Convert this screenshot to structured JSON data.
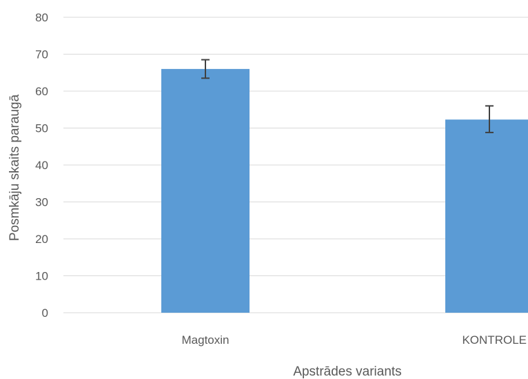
{
  "chart_data": {
    "type": "bar",
    "categories": [
      "Magtoxin",
      "KONTROLE"
    ],
    "values": [
      66,
      52.3
    ],
    "error_low": [
      63.5,
      48.8
    ],
    "error_high": [
      68.5,
      56
    ],
    "title": "",
    "xlabel": "Apstrādes variants",
    "ylabel": "Posmkāju skaits paraugā",
    "ylim": [
      0,
      80
    ],
    "yticks": [
      "0",
      "10",
      "20",
      "30",
      "40",
      "50",
      "60",
      "70",
      "80"
    ],
    "grid": true,
    "bar_color": "#5b9bd5",
    "gridline_color": "#d9d9d9",
    "error_bar_color": "#404040",
    "text_color": "#595959"
  }
}
